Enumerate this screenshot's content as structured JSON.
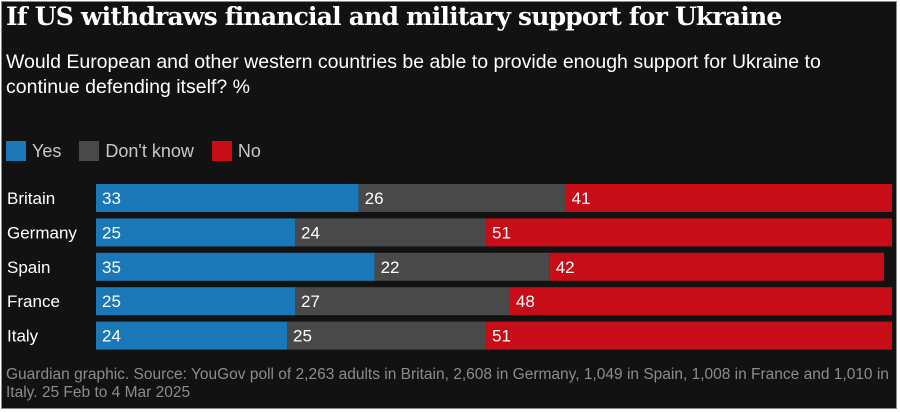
{
  "chart_data": {
    "type": "bar",
    "orientation": "horizontal",
    "stacked": true,
    "title": "If US withdraws financial and military support for Ukraine",
    "subtitle": "Would European and other western countries be able to provide enough support for Ukraine to continue defending itself? %",
    "categories": [
      "Britain",
      "Germany",
      "Spain",
      "France",
      "Italy"
    ],
    "series": [
      {
        "name": "Yes",
        "color": "#1a77b8",
        "values": [
          33,
          25,
          35,
          25,
          24
        ]
      },
      {
        "name": "Don't know",
        "color": "#494949",
        "values": [
          26,
          24,
          22,
          27,
          25
        ]
      },
      {
        "name": "No",
        "color": "#c70e18",
        "values": [
          41,
          51,
          42,
          48,
          51
        ]
      }
    ],
    "xlim": [
      0,
      100
    ],
    "legend_position": "top-left",
    "grid": false,
    "source": "Guardian graphic. Source: YouGov poll of 2,263 adults in Britain, 2,608 in Germany, 1,049 in Spain, 1,008 in France and 1,010 in Italy. 25 Feb to 4 Mar 2025"
  }
}
